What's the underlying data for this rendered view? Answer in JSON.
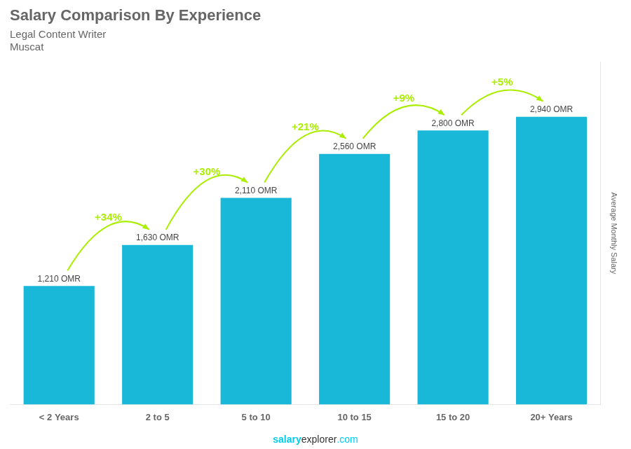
{
  "chart_data": {
    "type": "bar",
    "title": "Salary Comparison By Experience",
    "subtitle": [
      "Legal Content Writer",
      "Muscat"
    ],
    "y_label": "Average Monthly Salary",
    "categories": [
      "< 2 Years",
      "2 to 5",
      "5 to 10",
      "10 to 15",
      "15 to 20",
      "20+ Years"
    ],
    "values": [
      1210,
      1630,
      2110,
      2560,
      2800,
      2940
    ],
    "value_labels": [
      "1,210 OMR",
      "1,630 OMR",
      "2,110 OMR",
      "2,560 OMR",
      "2,800 OMR",
      "2,940 OMR"
    ],
    "data_labels": true,
    "color": "#1ab8d8",
    "ylim": [
      0,
      3500
    ],
    "grid": false,
    "tick_labels": "x",
    "annotations": [
      {
        "text": "+34%",
        "color": "#aaee00",
        "from": "< 2 Years",
        "to": "2 to 5"
      },
      {
        "text": "+30%",
        "color": "#aaee00",
        "from": "2 to 5",
        "to": "5 to 10"
      },
      {
        "text": "+21%",
        "color": "#aaee00",
        "from": "5 to 10",
        "to": "10 to 15"
      },
      {
        "text": "+9%",
        "color": "#aaee00",
        "from": "10 to 15",
        "to": "15 to 20"
      },
      {
        "text": "+5%",
        "color": "#aaee00",
        "from": "15 to 20",
        "to": "20+ Years"
      }
    ],
    "footer": [
      {
        "text": "salary",
        "color": "#00ccee"
      },
      {
        "text": "explorer",
        "color": "#333333"
      },
      {
        "text": ".com",
        "color": "#00ccee"
      }
    ]
  }
}
